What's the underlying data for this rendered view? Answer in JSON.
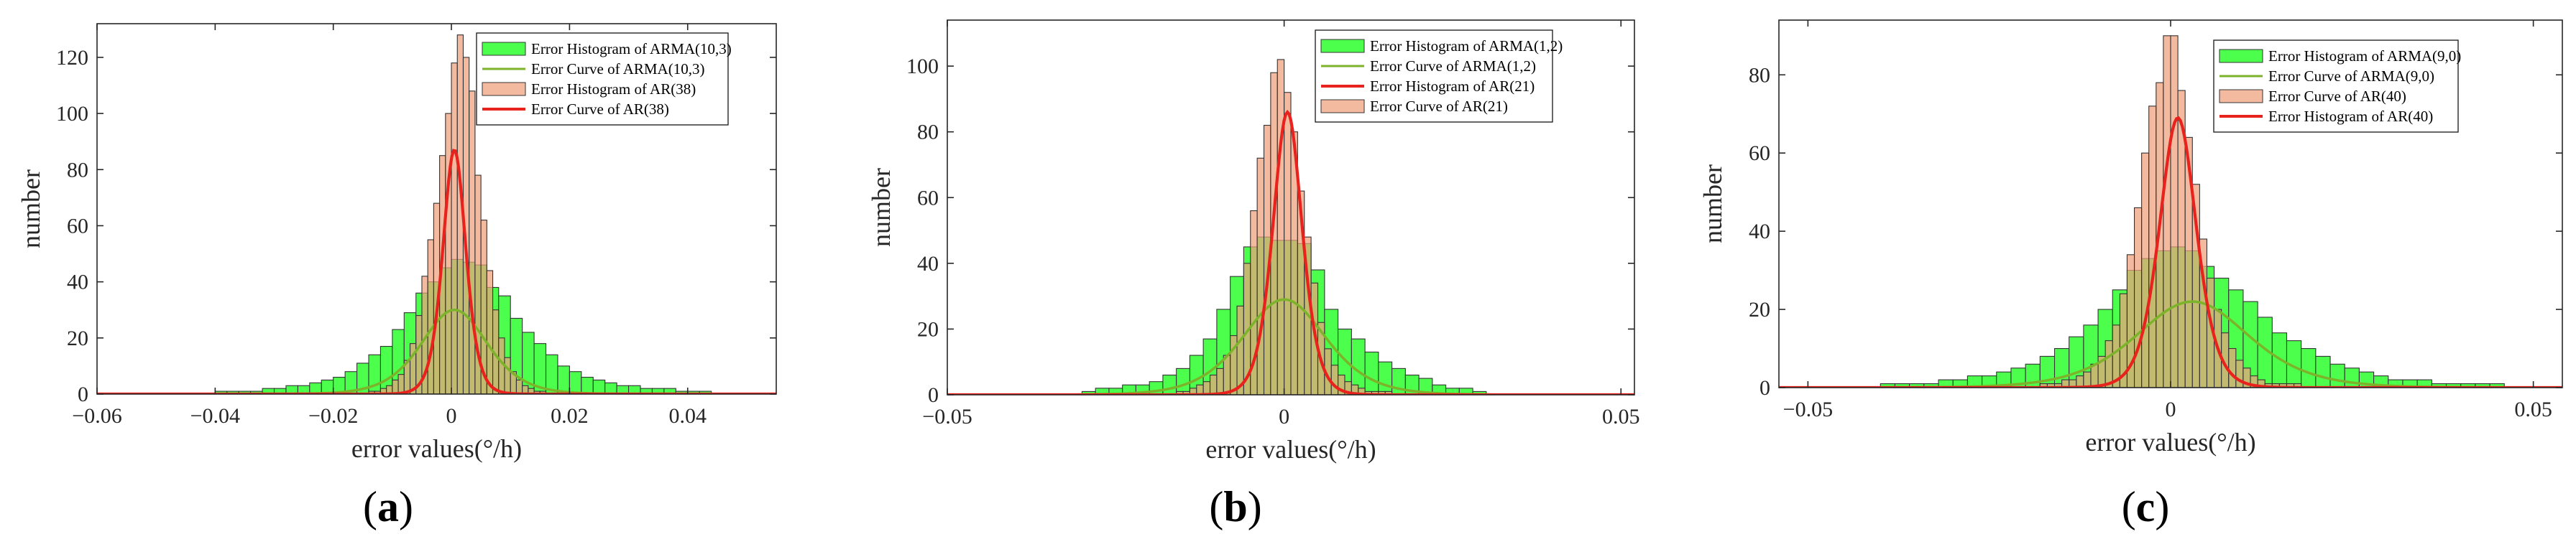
{
  "colors": {
    "hist_arma": "#4CFF4C",
    "hist_ar": "#F0A07C",
    "curve_arma": "#7CB32B",
    "curve_ar": "#E8231E",
    "edge": "#333333",
    "axis": "#262626"
  },
  "chart_data": [
    {
      "type": "bar",
      "panel_label": "a",
      "xlabel": "error values(°/h)",
      "ylabel": "number",
      "xlim": [
        -0.06,
        0.055
      ],
      "ylim": [
        0,
        132
      ],
      "xticks": [
        -0.06,
        -0.04,
        -0.02,
        0,
        0.02,
        0.04
      ],
      "xtick_labels": [
        "−0.06",
        "−0.04",
        "−0.02",
        "0",
        "0.02",
        "0.04"
      ],
      "yticks": [
        0,
        20,
        40,
        60,
        80,
        100,
        120
      ],
      "legend": {
        "position": "top-right",
        "entries": [
          {
            "label": "Error Histogram of ARMA(10,3)",
            "kind": "patch",
            "color": "hist_arma"
          },
          {
            "label": "Error Curve of ARMA(10,3)",
            "kind": "line",
            "color": "curve_arma"
          },
          {
            "label": "Error Histogram of AR(38)",
            "kind": "patch",
            "color": "hist_ar"
          },
          {
            "label": "Error Curve of AR(38)",
            "kind": "line",
            "color": "curve_ar"
          }
        ]
      },
      "series": [
        {
          "name": "Error Histogram of ARMA(10,3)",
          "kind": "histogram",
          "bin_start": -0.04,
          "bin_width": 0.002,
          "values": [
            1,
            1,
            1,
            1,
            2,
            2,
            3,
            3,
            4,
            5,
            6,
            8,
            11,
            14,
            17,
            23,
            29,
            36,
            40,
            45,
            48,
            47,
            46,
            38,
            35,
            27,
            22,
            18,
            14,
            10,
            8,
            6,
            5,
            4,
            3,
            3,
            2,
            2,
            2,
            1,
            1,
            1
          ]
        },
        {
          "name": "Error Histogram of AR(38)",
          "kind": "histogram",
          "bin_start": -0.014,
          "bin_width": 0.001,
          "values": [
            1,
            1,
            2,
            3,
            5,
            7,
            12,
            18,
            28,
            42,
            55,
            68,
            85,
            100,
            118,
            128,
            120,
            108,
            78,
            62,
            44,
            30,
            20,
            13,
            8,
            5,
            3,
            2,
            1,
            1
          ]
        },
        {
          "name": "Error Curve of ARMA(10,3)",
          "kind": "curve",
          "curve_type": "logistic",
          "mu": 0.0005,
          "s": 0.0075,
          "peak": 30
        },
        {
          "name": "Error Curve of AR(38)",
          "kind": "curve",
          "curve_type": "logistic",
          "mu": 0.0005,
          "s": 0.0026,
          "peak": 87
        }
      ]
    },
    {
      "type": "bar",
      "panel_label": "b",
      "xlabel": "error values(°/h)",
      "ylabel": "number",
      "xlim": [
        -0.05,
        0.052
      ],
      "ylim": [
        0,
        114
      ],
      "xticks": [
        -0.05,
        0,
        0.05
      ],
      "xtick_labels": [
        "−0.05",
        "0",
        "0.05"
      ],
      "yticks": [
        0,
        20,
        40,
        60,
        80,
        100
      ],
      "legend": {
        "position": "top-right",
        "entries": [
          {
            "label": "Error Histogram of ARMA(1,2)",
            "kind": "patch",
            "color": "hist_arma"
          },
          {
            "label": "Error Curve of ARMA(1,2)",
            "kind": "line",
            "color": "curve_arma"
          },
          {
            "label": "Error Histogram of AR(21)",
            "kind": "line",
            "color": "curve_ar"
          },
          {
            "label": "Error Curve of AR(21)",
            "kind": "patch",
            "color": "hist_ar"
          }
        ]
      },
      "series": [
        {
          "name": "Error Histogram of ARMA(1,2)",
          "kind": "histogram",
          "bin_start": -0.03,
          "bin_width": 0.002,
          "values": [
            1,
            2,
            2,
            3,
            3,
            4,
            6,
            8,
            12,
            17,
            26,
            36,
            45,
            48,
            47,
            47,
            46,
            38,
            26,
            20,
            17,
            13,
            10,
            8,
            6,
            5,
            3,
            2,
            2,
            1
          ]
        },
        {
          "name": "Error Curve of AR(21)",
          "kind": "histogram",
          "bin_start": -0.016,
          "bin_width": 0.001,
          "values": [
            1,
            1,
            2,
            3,
            4,
            6,
            8,
            12,
            18,
            27,
            40,
            56,
            72,
            82,
            98,
            102,
            92,
            80,
            62,
            48,
            34,
            22,
            14,
            9,
            6,
            4,
            3,
            2,
            1,
            1,
            1,
            1
          ]
        },
        {
          "name": "Error Curve of ARMA(1,2)",
          "kind": "curve",
          "curve_type": "logistic",
          "mu": 0.0,
          "s": 0.0083,
          "peak": 29
        },
        {
          "name": "Error Histogram of AR(21)",
          "kind": "curve",
          "curve_type": "logistic",
          "mu": 0.0005,
          "s": 0.0029,
          "peak": 86
        }
      ]
    },
    {
      "type": "bar",
      "panel_label": "c",
      "xlabel": "error values(°/h)",
      "ylabel": "number",
      "xlim": [
        -0.054,
        0.054
      ],
      "ylim": [
        0,
        94
      ],
      "xticks": [
        -0.05,
        0,
        0.05
      ],
      "xtick_labels": [
        "−0.05",
        "0",
        "0.05"
      ],
      "yticks": [
        0,
        20,
        40,
        60,
        80
      ],
      "legend": {
        "position": "top-right",
        "entries": [
          {
            "label": "Error Histogram of ARMA(9,0)",
            "kind": "patch",
            "color": "hist_arma"
          },
          {
            "label": "Error Curve of ARMA(9,0)",
            "kind": "line",
            "color": "curve_arma"
          },
          {
            "label": "Error Curve of AR(40)",
            "kind": "patch",
            "color": "hist_ar"
          },
          {
            "label": "Error Histogram of AR(40)",
            "kind": "line",
            "color": "curve_ar"
          }
        ]
      },
      "series": [
        {
          "name": "Error Histogram of ARMA(9,0)",
          "kind": "histogram",
          "bin_start": -0.04,
          "bin_width": 0.002,
          "values": [
            1,
            1,
            1,
            1,
            2,
            2,
            3,
            3,
            4,
            5,
            6,
            8,
            10,
            13,
            16,
            20,
            25,
            30,
            33,
            35,
            36,
            35,
            31,
            28,
            25,
            22,
            18,
            14,
            12,
            10,
            8,
            6,
            5,
            4,
            3,
            2,
            2,
            2,
            1,
            1,
            1,
            1,
            1
          ]
        },
        {
          "name": "Error Curve of AR(40)",
          "kind": "histogram",
          "bin_start": -0.018,
          "bin_width": 0.001,
          "values": [
            1,
            1,
            1,
            2,
            2,
            3,
            4,
            6,
            8,
            12,
            16,
            24,
            34,
            46,
            60,
            72,
            78,
            90,
            90,
            76,
            64,
            52,
            38,
            28,
            20,
            14,
            10,
            7,
            5,
            3,
            2,
            1,
            1,
            1,
            1,
            1
          ]
        },
        {
          "name": "Error Curve of ARMA(9,0)",
          "kind": "curve",
          "curve_type": "logistic",
          "mu": 0.003,
          "s": 0.0105,
          "peak": 22
        },
        {
          "name": "Error Histogram of AR(40)",
          "kind": "curve",
          "curve_type": "logistic",
          "mu": 0.001,
          "s": 0.0034,
          "peak": 69
        }
      ]
    }
  ]
}
